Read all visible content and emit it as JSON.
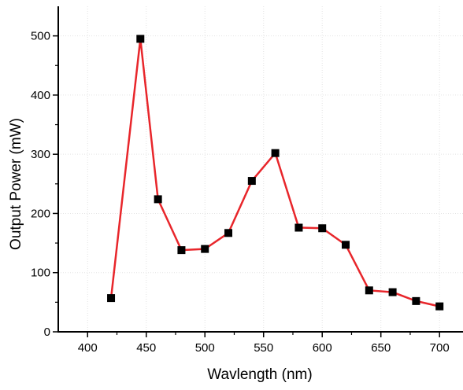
{
  "chart_data": {
    "type": "line",
    "title": "",
    "xlabel": "Wavlength (nm)",
    "ylabel": "Output Power (mW)",
    "xlim": [
      375,
      720
    ],
    "ylim": [
      0,
      550
    ],
    "xticks": [
      400,
      450,
      500,
      550,
      600,
      650,
      700
    ],
    "yticks": [
      0,
      100,
      200,
      300,
      400,
      500
    ],
    "grid": true,
    "legend": "none",
    "series": [
      {
        "x": [
          420,
          445,
          460,
          480,
          500,
          520,
          540,
          560,
          580,
          600,
          620,
          640,
          660,
          680,
          700
        ],
        "y": [
          57,
          495,
          224,
          138,
          140,
          167,
          255,
          302,
          176,
          175,
          147,
          70,
          67,
          52,
          43
        ],
        "line_color": "#e8262b",
        "marker": "square",
        "marker_color": "#000000"
      }
    ]
  }
}
